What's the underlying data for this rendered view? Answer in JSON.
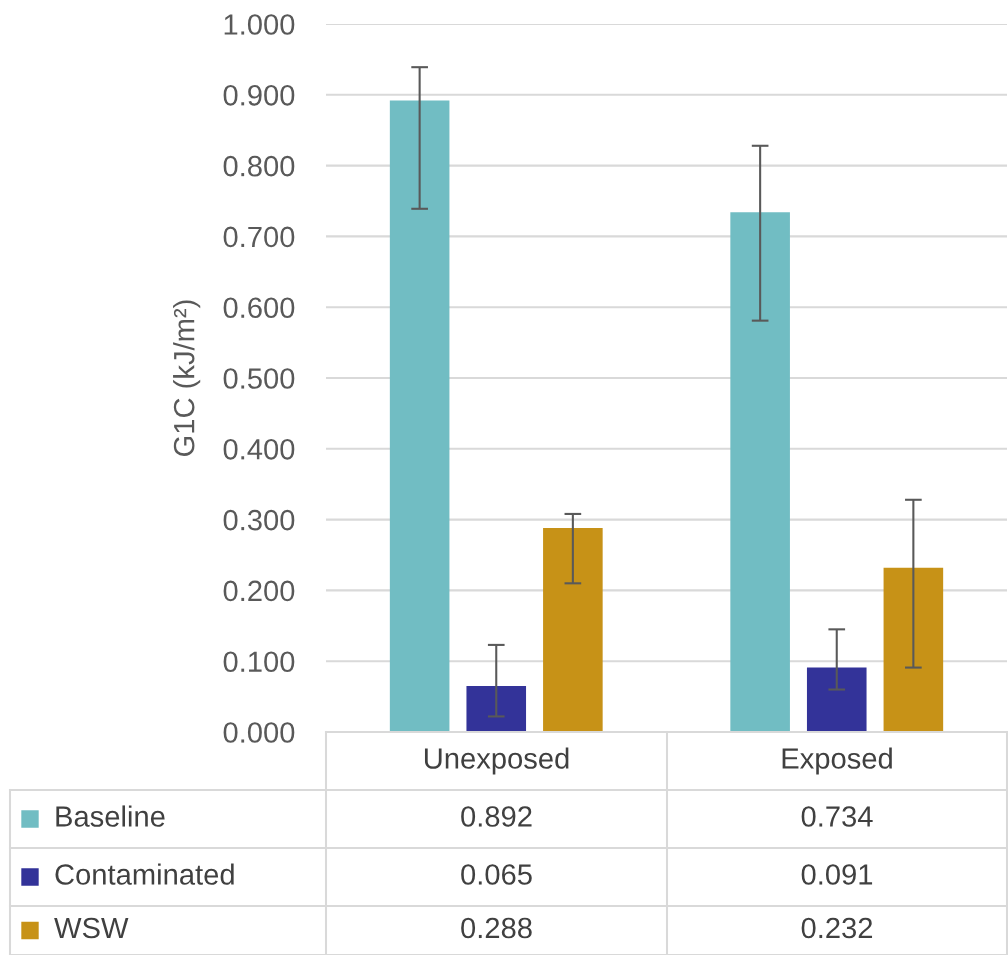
{
  "chart_data": {
    "type": "bar",
    "ylabel": "G1C (kJ/m²)",
    "categories": [
      "Unexposed",
      "Exposed"
    ],
    "series": [
      {
        "name": "Baseline",
        "color": "#71bdc3",
        "values": [
          0.892,
          0.734
        ],
        "errors": [
          [
            0.739,
            0.939
          ],
          [
            0.581,
            0.828
          ]
        ]
      },
      {
        "name": "Contaminated",
        "color": "#333399",
        "values": [
          0.065,
          0.091
        ],
        "errors": [
          [
            0.022,
            0.123
          ],
          [
            0.06,
            0.145
          ]
        ]
      },
      {
        "name": "WSW",
        "color": "#c79217",
        "values": [
          0.288,
          0.232
        ],
        "errors": [
          [
            0.21,
            0.308
          ],
          [
            0.091,
            0.328
          ]
        ]
      }
    ],
    "ylim": [
      0,
      1
    ],
    "yticks": [
      {
        "value": 0,
        "label": "0.000"
      },
      {
        "value": 0.1,
        "label": "0.100"
      },
      {
        "value": 0.2,
        "label": "0.200"
      },
      {
        "value": 0.3,
        "label": "0.300"
      },
      {
        "value": 0.4,
        "label": "0.400"
      },
      {
        "value": 0.5,
        "label": "0.500"
      },
      {
        "value": 0.6,
        "label": "0.600"
      },
      {
        "value": 0.7,
        "label": "0.700"
      },
      {
        "value": 0.8,
        "label": "0.800"
      },
      {
        "value": 0.9,
        "label": "0.900"
      },
      {
        "value": 1,
        "label": "1.000"
      }
    ],
    "grid": "y",
    "legend": "bottom",
    "data_labels": true
  }
}
